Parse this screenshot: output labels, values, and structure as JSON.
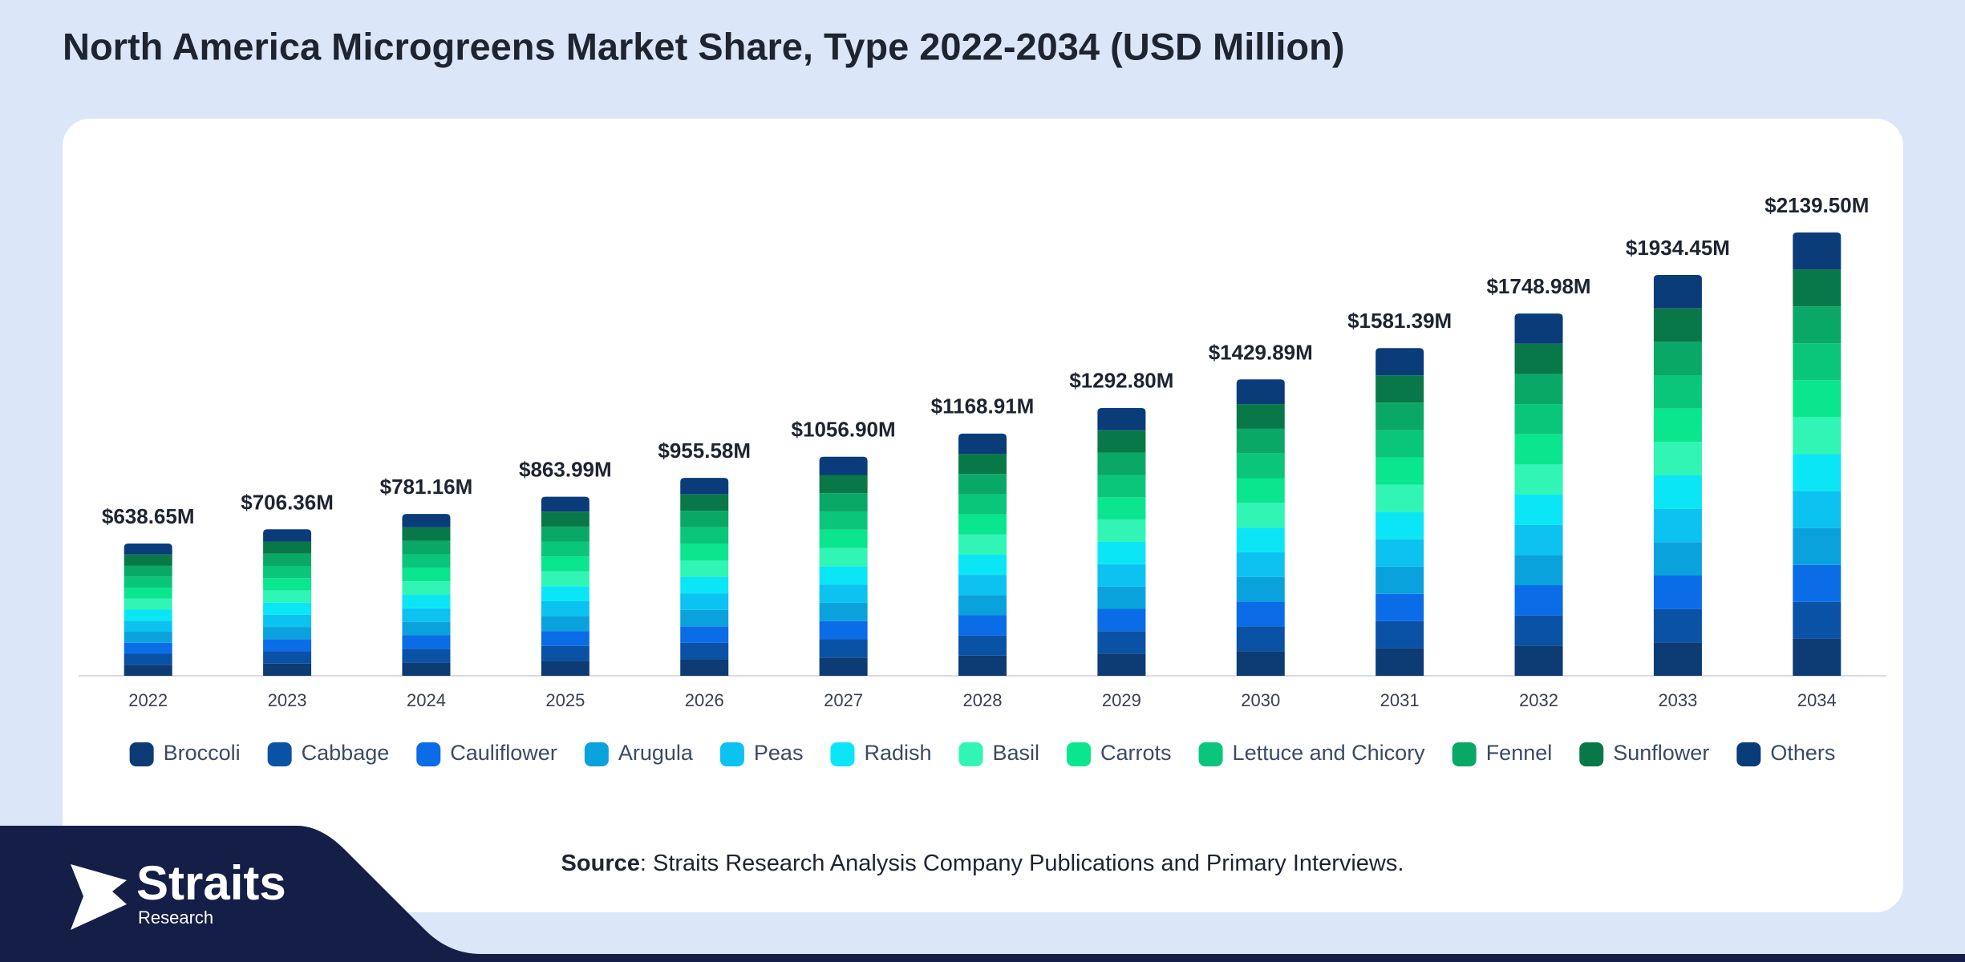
{
  "chart_data": {
    "type": "stacked_bar",
    "title": "North America Microgreens Market Share, Type 2022-2034 (USD Million)",
    "categories": [
      "2022",
      "2023",
      "2024",
      "2025",
      "2026",
      "2027",
      "2028",
      "2029",
      "2030",
      "2031",
      "2032",
      "2033",
      "2034"
    ],
    "series": [
      {
        "name": "Broccoli",
        "color": "#0d3b73",
        "values": [
          53.2,
          58.9,
          65.1,
          72.0,
          79.6,
          88.1,
          97.4,
          107.7,
          119.2,
          131.8,
          145.7,
          161.2,
          178.3
        ]
      },
      {
        "name": "Cabbage",
        "color": "#0a52a6",
        "values": [
          53.2,
          58.9,
          65.1,
          72.0,
          79.6,
          88.1,
          97.4,
          107.7,
          119.2,
          131.8,
          145.7,
          161.2,
          178.3
        ]
      },
      {
        "name": "Cauliflower",
        "color": "#0b6ce8",
        "values": [
          53.2,
          58.9,
          65.1,
          72.0,
          79.6,
          88.1,
          97.4,
          107.7,
          119.2,
          131.8,
          145.7,
          161.2,
          178.3
        ]
      },
      {
        "name": "Arugula",
        "color": "#0aa2dc",
        "values": [
          53.2,
          58.9,
          65.1,
          72.0,
          79.6,
          88.1,
          97.4,
          107.7,
          119.2,
          131.8,
          145.7,
          161.2,
          178.3
        ]
      },
      {
        "name": "Peas",
        "color": "#0bc2f0",
        "values": [
          53.2,
          58.9,
          65.1,
          72.0,
          79.6,
          88.1,
          97.4,
          107.7,
          119.2,
          131.8,
          145.7,
          161.2,
          178.3
        ]
      },
      {
        "name": "Radish",
        "color": "#0ae6f6",
        "values": [
          53.2,
          58.9,
          65.1,
          72.0,
          79.6,
          88.1,
          97.4,
          107.7,
          119.2,
          131.8,
          145.7,
          161.2,
          178.3
        ]
      },
      {
        "name": "Basil",
        "color": "#30f5b5",
        "values": [
          53.2,
          58.9,
          65.1,
          72.0,
          79.6,
          88.1,
          97.4,
          107.7,
          119.2,
          131.8,
          145.7,
          161.2,
          178.3
        ]
      },
      {
        "name": "Carrots",
        "color": "#0ae68e",
        "values": [
          53.2,
          58.9,
          65.1,
          72.0,
          79.6,
          88.1,
          97.4,
          107.7,
          119.2,
          131.8,
          145.7,
          161.2,
          178.3
        ]
      },
      {
        "name": "Lettuce and Chicory",
        "color": "#0ac67a",
        "values": [
          53.2,
          58.9,
          65.1,
          72.0,
          79.6,
          88.1,
          97.4,
          107.7,
          119.2,
          131.8,
          145.7,
          161.2,
          178.3
        ]
      },
      {
        "name": "Fennel",
        "color": "#0aa866",
        "values": [
          53.2,
          58.9,
          65.1,
          72.0,
          79.6,
          88.1,
          97.4,
          107.7,
          119.2,
          131.8,
          145.7,
          161.2,
          178.3
        ]
      },
      {
        "name": "Sunflower",
        "color": "#087848",
        "values": [
          53.2,
          58.9,
          65.1,
          72.0,
          79.6,
          88.1,
          97.4,
          107.7,
          119.2,
          131.8,
          145.7,
          161.2,
          178.3
        ]
      },
      {
        "name": "Others",
        "color": "#0a3c7a",
        "values": [
          53.2,
          58.9,
          65.1,
          72.0,
          79.6,
          88.1,
          97.4,
          107.7,
          119.2,
          131.8,
          145.7,
          161.2,
          178.3
        ]
      }
    ],
    "total": {
      "values": [
        638.65,
        706.36,
        781.16,
        863.99,
        955.58,
        1056.9,
        1168.91,
        1292.8,
        1429.89,
        1581.39,
        1748.98,
        1934.45,
        2139.5
      ],
      "value_labels": [
        "$638.65M",
        "$706.36M",
        "$781.16M",
        "$863.99M",
        "$955.58M",
        "$1056.90M",
        "$1168.91M",
        "$1292.80M",
        "$1429.89M",
        "$1581.39M",
        "$1748.98M",
        "$1934.45M",
        "$2139.50M"
      ]
    }
  },
  "source": {
    "label": "Source",
    "text": ": Straits Research Analysis Company Publications and Primary Interviews."
  },
  "logo": {
    "name": "Straits",
    "sub": "Research"
  }
}
